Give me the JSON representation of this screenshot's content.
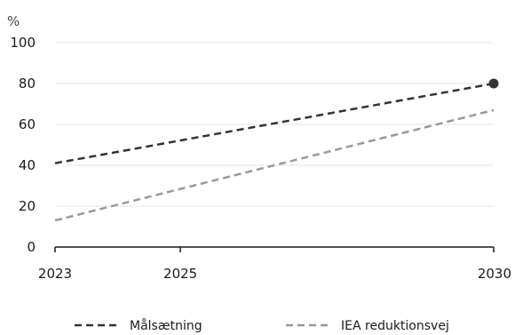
{
  "chart_data": {
    "type": "line",
    "y_unit_label": "%",
    "x": [
      2023,
      2030
    ],
    "x_ticks": [
      "2023",
      "2025",
      "2030"
    ],
    "y_ticks": [
      "0",
      "20",
      "40",
      "60",
      "80",
      "100"
    ],
    "xlim": [
      2023,
      2030
    ],
    "ylim": [
      0,
      100
    ],
    "grid": true,
    "legend_position": "bottom",
    "series": [
      {
        "name": "Målsætning",
        "values": [
          41,
          80
        ],
        "color": "#333333",
        "style": "dashed",
        "end_marker": true
      },
      {
        "name": "IEA reduktionsvej",
        "values": [
          13,
          67
        ],
        "color": "#9e9893",
        "style": "dashed",
        "end_marker": false
      }
    ]
  }
}
